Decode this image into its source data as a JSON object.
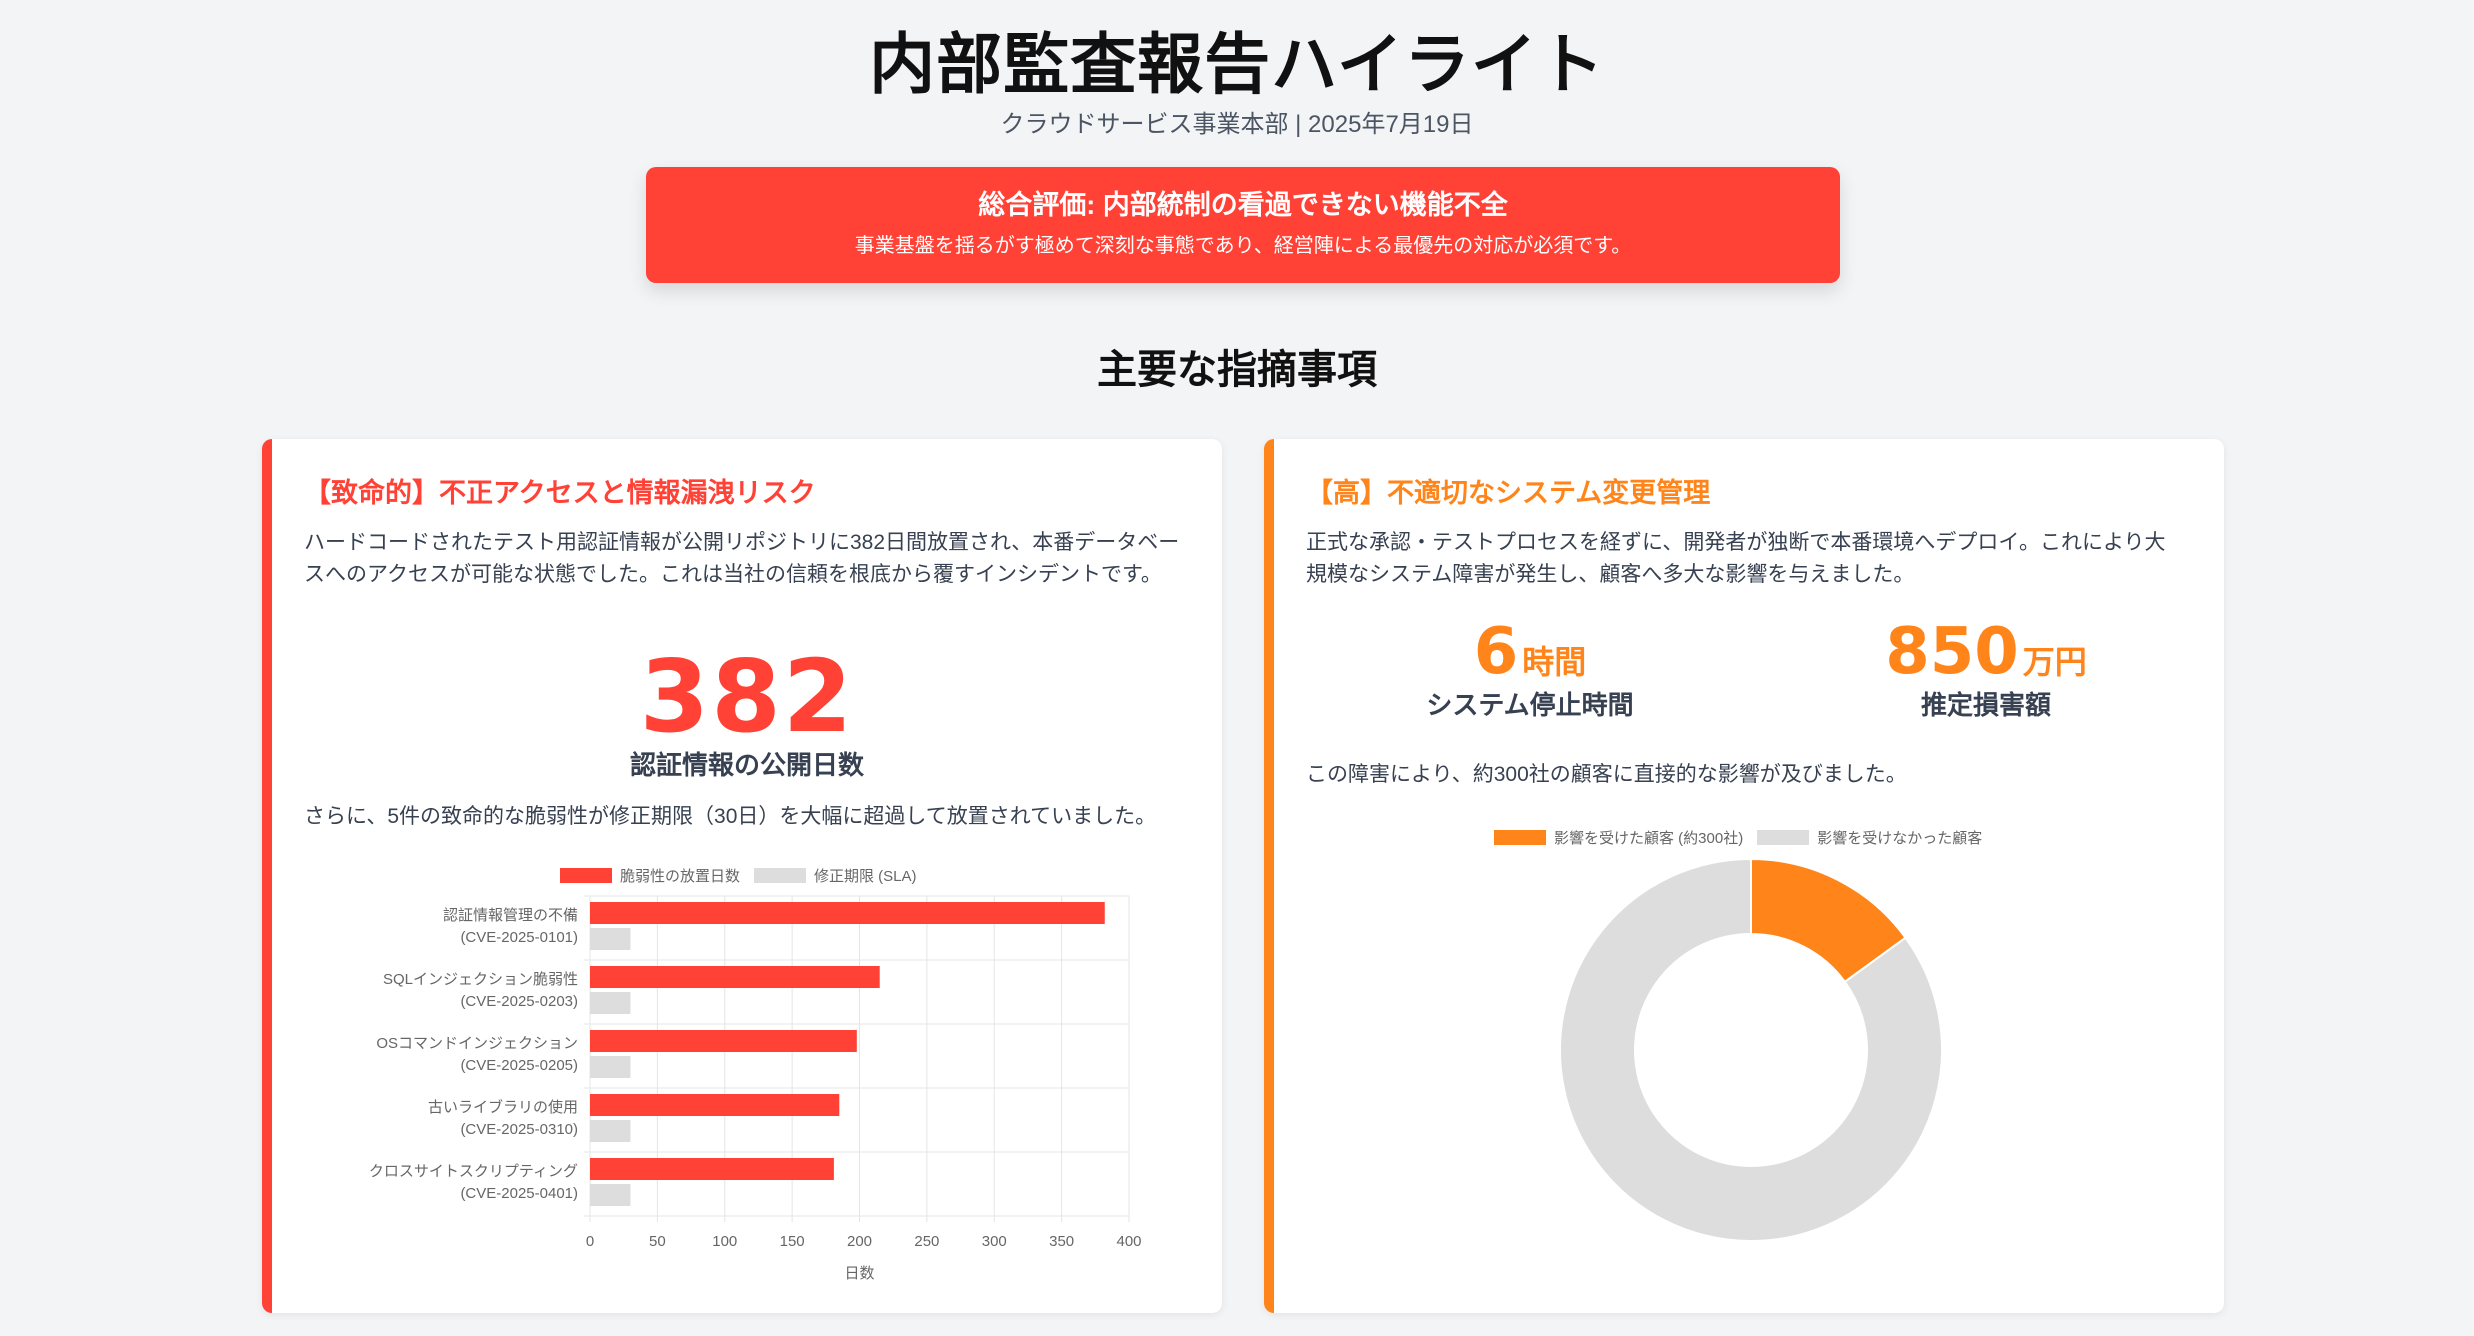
{
  "header": {
    "title": "内部監査報告ハイライト",
    "subtitle": "クラウドサービス事業本部 | 2025年7月19日"
  },
  "banner": {
    "title": "総合評価: 内部統制の看過できない機能不全",
    "text": "事業基盤を揺るがす極めて深刻な事態であり、経営陣による最優先の対応が必須です。",
    "color": "#ff4136"
  },
  "section": {
    "title": "主要な指摘事項"
  },
  "findings": [
    {
      "title": "【致命的】不正アクセスと情報漏洩リスク",
      "severity_color": "#ff4136",
      "description": "ハードコードされたテスト用認証情報が公開リポジトリに382日間放置され、本番データベースへのアクセスが可能な状態でした。これは当社の信頼を根底から覆すインシデントです。",
      "stat_value": "382",
      "stat_label": "認証情報の公開日数",
      "note": "さらに、5件の致命的な脆弱性が修正期限（30日）を大幅に超過して放置されていました。"
    },
    {
      "title": "【高】不適切なシステム変更管理",
      "severity_color": "#ff851b",
      "description": "正式な承認・テストプロセスを経ずに、開発者が独断で本番環境へデプロイ。これにより大規模なシステム障害が発生し、顧客へ多大な影響を与えました。",
      "stats": [
        {
          "value": "6",
          "unit": "時間",
          "label": "システム停止時間"
        },
        {
          "value": "850",
          "unit": "万円",
          "label": "推定損害額"
        }
      ],
      "note": "この障害により、約300社の顧客に直接的な影響が及びました。"
    }
  ],
  "chart_data": [
    {
      "type": "bar",
      "orientation": "horizontal",
      "title": "",
      "categories": [
        [
          "認証情報管理の不備",
          "(CVE-2025-0101)"
        ],
        [
          "SQLインジェクション脆弱性",
          "(CVE-2025-0203)"
        ],
        [
          "OSコマンドインジェクション",
          "(CVE-2025-0205)"
        ],
        [
          "古いライブラリの使用",
          "(CVE-2025-0310)"
        ],
        [
          "クロスサイトスクリプティング",
          "(CVE-2025-0401)"
        ]
      ],
      "series": [
        {
          "name": "脆弱性の放置日数",
          "color": "#ff4136",
          "values": [
            382,
            215,
            198,
            185,
            181
          ]
        },
        {
          "name": "修正期限 (SLA)",
          "color": "#dddddd",
          "values": [
            30,
            30,
            30,
            30,
            30
          ]
        }
      ],
      "xlabel": "日数",
      "ylabel": "",
      "xlim": [
        0,
        400
      ],
      "xticks": [
        "0",
        "50",
        "100",
        "150",
        "200",
        "250",
        "300",
        "350",
        "400"
      ],
      "grid": true,
      "legend_position": "top"
    },
    {
      "type": "pie",
      "variant": "doughnut",
      "title": "",
      "categories": [
        "影響を受けた顧客 (約300社)",
        "影響を受けなかった顧客"
      ],
      "values": [
        300,
        1700
      ],
      "colors": [
        "#ff851b",
        "#dddddd"
      ],
      "legend_position": "top"
    }
  ]
}
